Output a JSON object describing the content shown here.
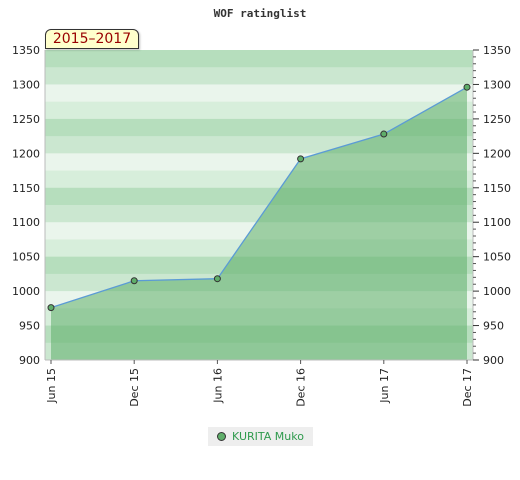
{
  "chart_data": {
    "type": "area",
    "title": "WOF ratinglist",
    "period_label": "2015–2017",
    "x": [
      "Jun 15",
      "Dec 15",
      "Jun 16",
      "Dec 16",
      "Jun 17",
      "Dec 17"
    ],
    "series": [
      {
        "name": "KURITA Muko",
        "values": [
          976,
          1015,
          1018,
          1192,
          1228,
          1296
        ],
        "x_index": [
          0,
          1,
          2,
          3,
          4,
          5
        ]
      }
    ],
    "ylim": [
      900,
      1350
    ],
    "yticks": [
      900,
      950,
      1000,
      1050,
      1100,
      1150,
      1200,
      1250,
      1300,
      1350
    ],
    "xlabel": "",
    "ylabel": "",
    "legend_position": "bottom-center",
    "grid": "horizontal-bands",
    "colors": {
      "fill": "#5fae6a",
      "line": "#5b9bd5",
      "band_light": "#eaf5ec",
      "band_dark": "#b6debd",
      "badge_bg": "#ffffcc",
      "badge_text": "#990000",
      "legend_text": "#2f9a4d"
    }
  }
}
